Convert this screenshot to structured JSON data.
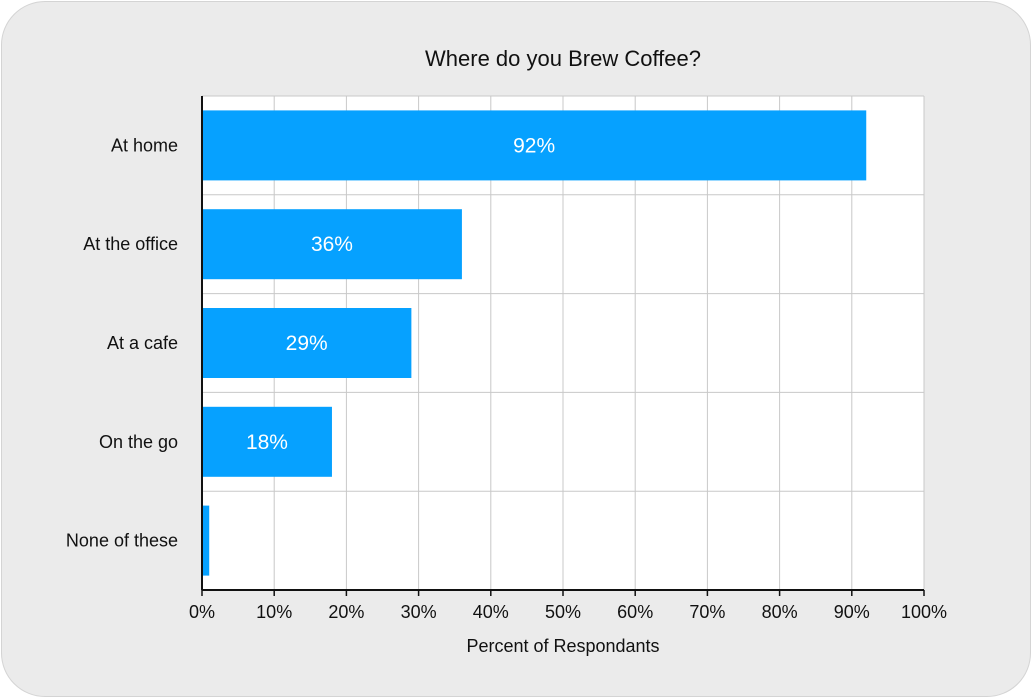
{
  "chart_data": {
    "type": "bar",
    "orientation": "horizontal",
    "title": "Where do you Brew Coffee?",
    "xlabel": "Percent of Respondants",
    "ylabel": "",
    "categories": [
      "At home",
      "At the office",
      "At a cafe",
      "On the go",
      "None of these"
    ],
    "values": [
      92,
      36,
      29,
      18,
      1
    ],
    "data_labels": [
      "92%",
      "36%",
      "29%",
      "18%",
      ""
    ],
    "xlim": [
      0,
      100
    ],
    "x_ticks": [
      0,
      10,
      20,
      30,
      40,
      50,
      60,
      70,
      80,
      90,
      100
    ],
    "x_tick_labels": [
      "0%",
      "10%",
      "20%",
      "30%",
      "40%",
      "50%",
      "60%",
      "70%",
      "80%",
      "90%",
      "100%"
    ],
    "grid": true,
    "bar_color": "#06a1ff",
    "plot_background": "#ffffff",
    "grid_color": "#c8c8c8",
    "card_background": "#ebebeb"
  }
}
